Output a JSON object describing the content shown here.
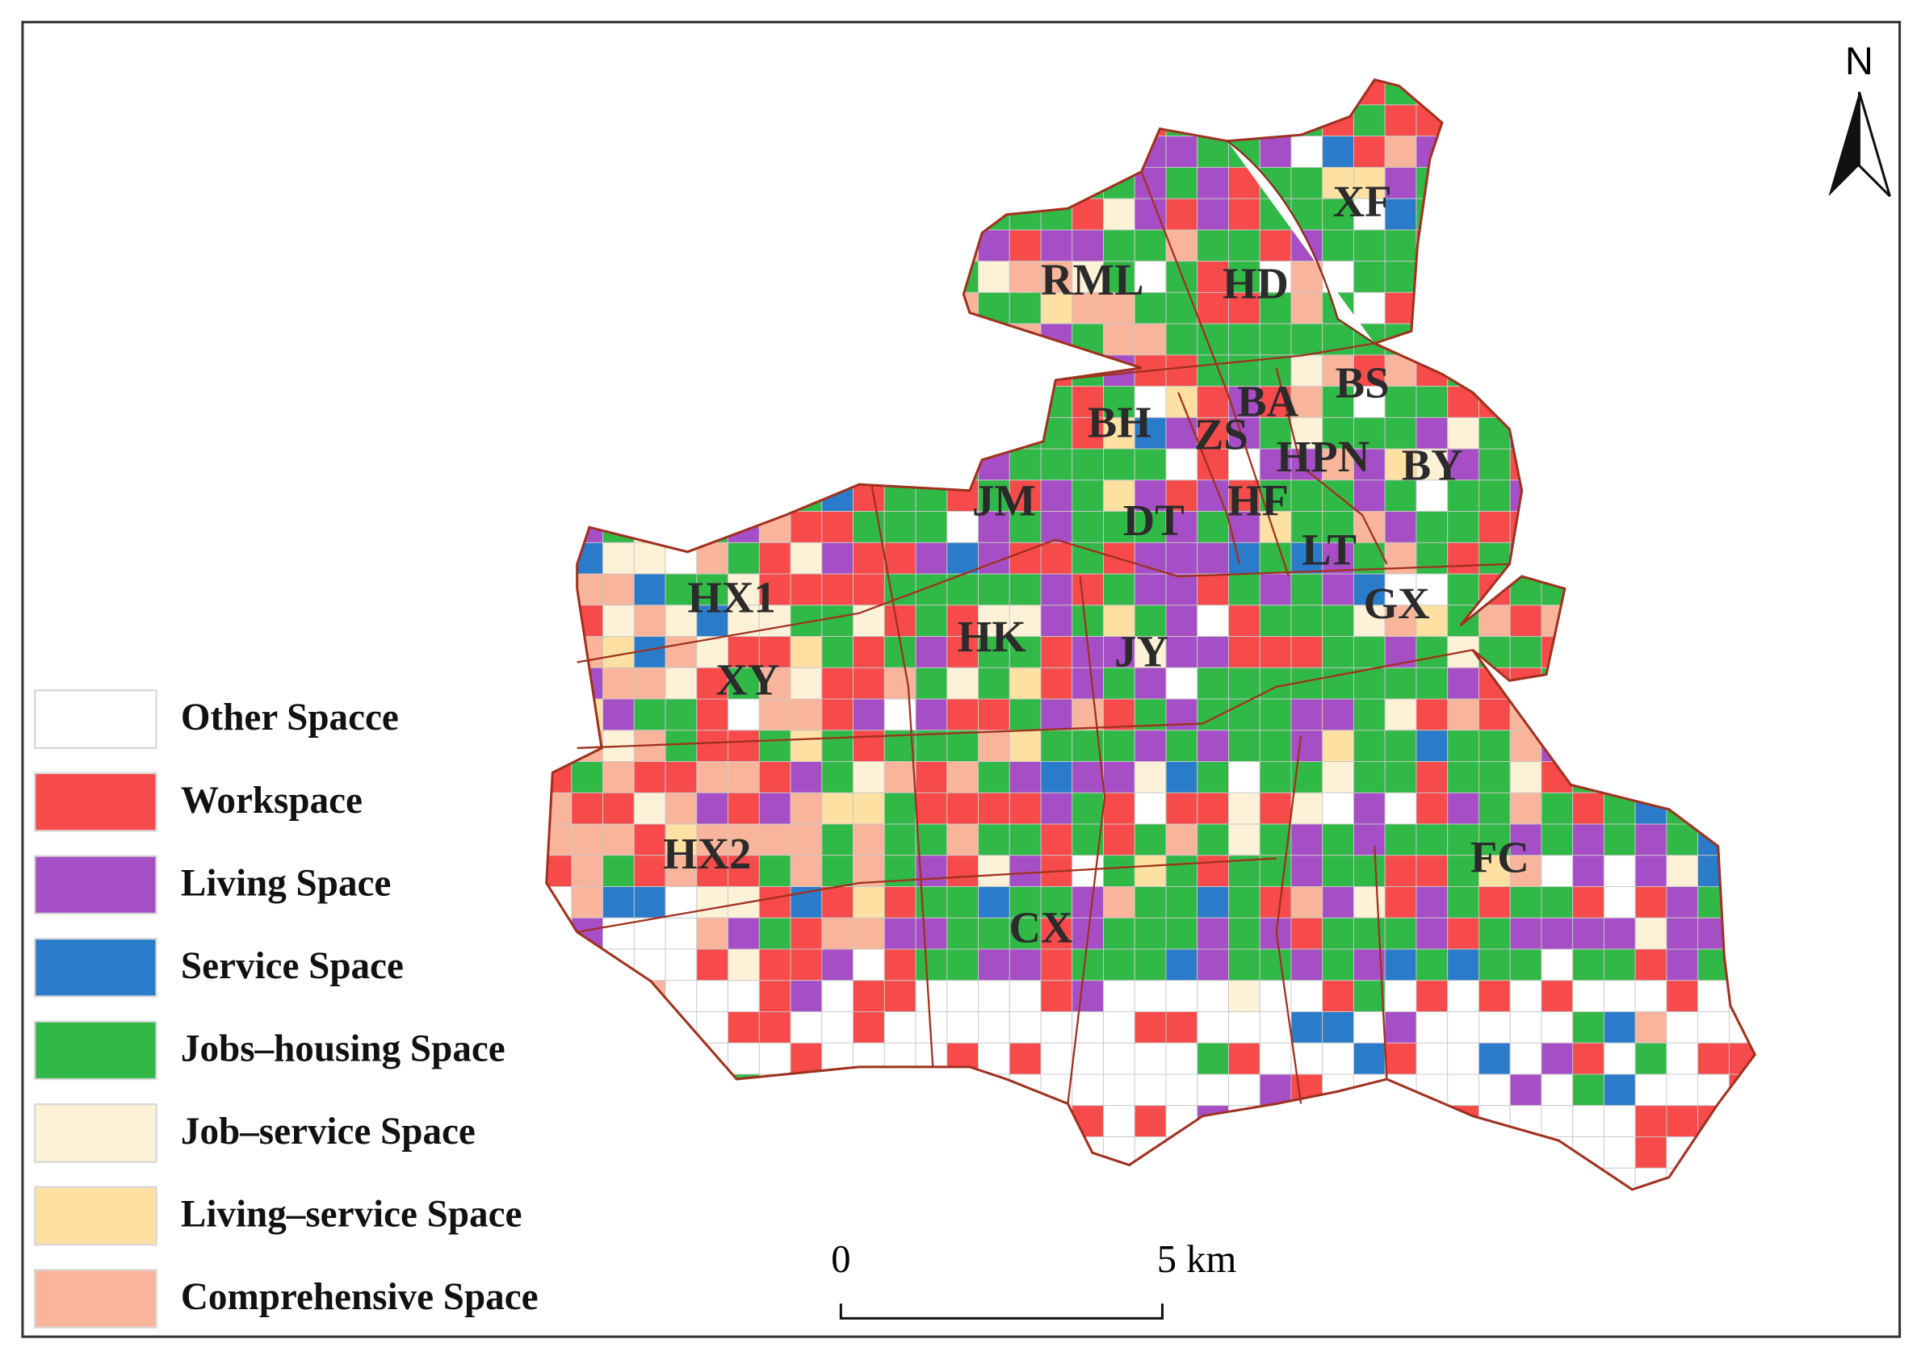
{
  "map": {
    "north": "N",
    "scale": {
      "start": "0",
      "end": "5 km"
    },
    "legend": [
      {
        "label": "Other Spacce",
        "color": "#ffffff"
      },
      {
        "label": "Workspace",
        "color": "#f74a4a"
      },
      {
        "label": "Living Space",
        "color": "#a64ec6"
      },
      {
        "label": "Service Space",
        "color": "#2a7bc9"
      },
      {
        "label": "Jobs–housing Space",
        "color": "#31b947"
      },
      {
        "label": "Job–service Space",
        "color": "#fdf1d8"
      },
      {
        "label": "Living–service Space",
        "color": "#fde0a2"
      },
      {
        "label": "Comprehensive Space",
        "color": "#f9b59c"
      }
    ],
    "districts": [
      "XF",
      "RML",
      "HD",
      "BS",
      "BA",
      "BH",
      "ZS",
      "HPN",
      "BY",
      "JM",
      "DT",
      "HF",
      "LT",
      "HX1",
      "GX",
      "HK",
      "JY",
      "XY",
      "HX2",
      "FC",
      "CX"
    ]
  }
}
